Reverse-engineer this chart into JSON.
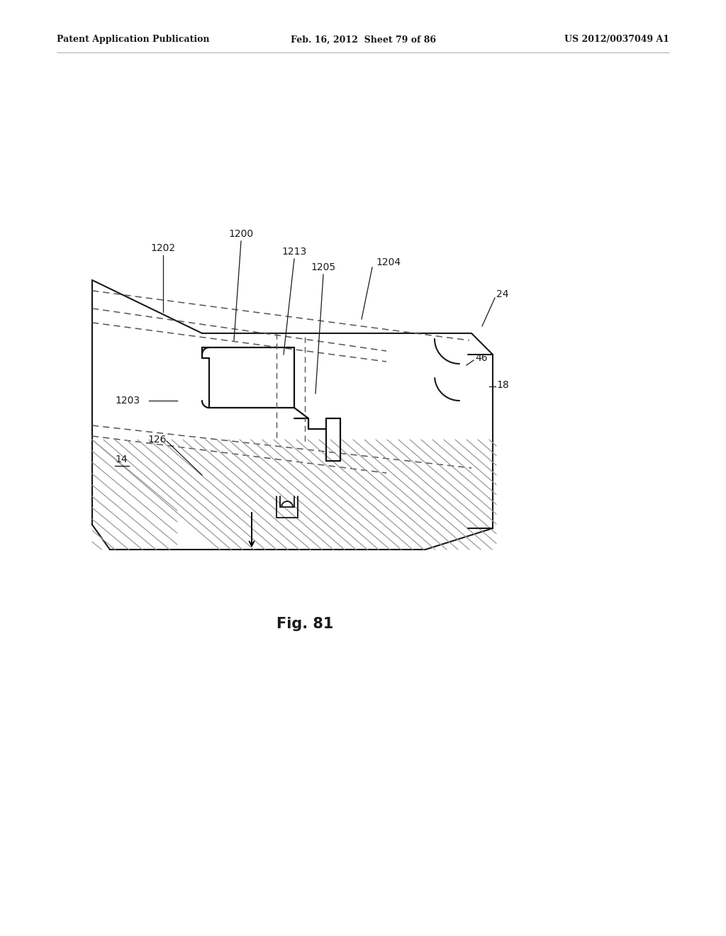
{
  "bg_color": "#ffffff",
  "header_left": "Patent Application Publication",
  "header_mid": "Feb. 16, 2012  Sheet 79 of 86",
  "header_right": "US 2012/0037049 A1",
  "fig_label": "Fig. 81",
  "line_color": "#1a1a1a",
  "dash_color": "#555555",
  "hatch_color": "#888888",
  "label_fontsize": 10,
  "header_fontsize": 9
}
